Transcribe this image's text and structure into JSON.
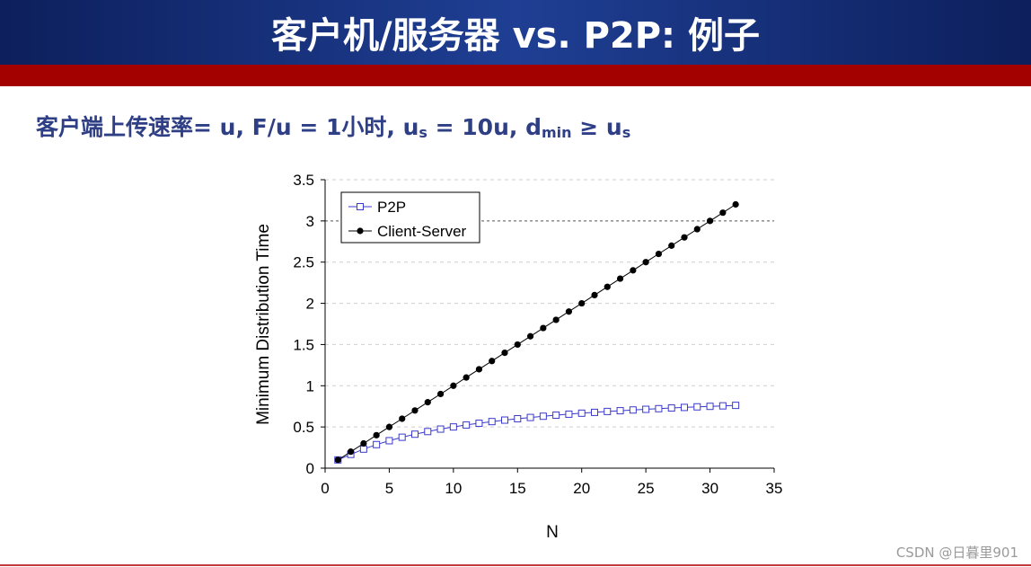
{
  "slide": {
    "title": "客户机/服务器 vs. P2P: 例子",
    "subtitle": {
      "p1": "客户端上传速率= u,  F/u = 1小时,  u",
      "s1": "s",
      "p2": " = 10u,  d",
      "s2": "min",
      "p3": " ≥ u",
      "s3": "s"
    },
    "watermark": "CSDN @日暮里901"
  },
  "colors": {
    "title_bar": "#1a3585",
    "red_band": "#a30000",
    "subtitle_text": "#2f3f86",
    "p2p": "#3a3acc",
    "client_server": "#000000"
  },
  "chart_data": {
    "type": "line",
    "xlabel": "N",
    "ylabel": "Minimum Distribution Time",
    "xlim": [
      0,
      35
    ],
    "ylim": [
      0,
      3.5
    ],
    "xticks": [
      0,
      5,
      10,
      15,
      20,
      25,
      30,
      35
    ],
    "yticks": [
      0,
      0.5,
      1,
      1.5,
      2,
      2.5,
      3,
      3.5
    ],
    "legend_position": "top-left",
    "grid": "dashed horizontal",
    "x": [
      1,
      2,
      3,
      4,
      5,
      6,
      7,
      8,
      9,
      10,
      11,
      12,
      13,
      14,
      15,
      16,
      17,
      18,
      19,
      20,
      21,
      22,
      23,
      24,
      25,
      26,
      27,
      28,
      29,
      30,
      31,
      32
    ],
    "series": [
      {
        "name": "P2P",
        "marker": "open-square",
        "values": [
          0.1,
          0.167,
          0.231,
          0.286,
          0.333,
          0.375,
          0.412,
          0.444,
          0.474,
          0.5,
          0.524,
          0.545,
          0.565,
          0.583,
          0.6,
          0.615,
          0.63,
          0.643,
          0.655,
          0.667,
          0.677,
          0.688,
          0.697,
          0.706,
          0.714,
          0.722,
          0.73,
          0.737,
          0.744,
          0.75,
          0.756,
          0.762
        ]
      },
      {
        "name": "Client-Server",
        "marker": "filled-circle",
        "values": [
          0.1,
          0.2,
          0.3,
          0.4,
          0.5,
          0.6,
          0.7,
          0.8,
          0.9,
          1.0,
          1.1,
          1.2,
          1.3,
          1.4,
          1.5,
          1.6,
          1.7,
          1.8,
          1.9,
          2.0,
          2.1,
          2.2,
          2.3,
          2.4,
          2.5,
          2.6,
          2.7,
          2.8,
          2.9,
          3.0,
          3.1,
          3.2
        ]
      }
    ]
  }
}
